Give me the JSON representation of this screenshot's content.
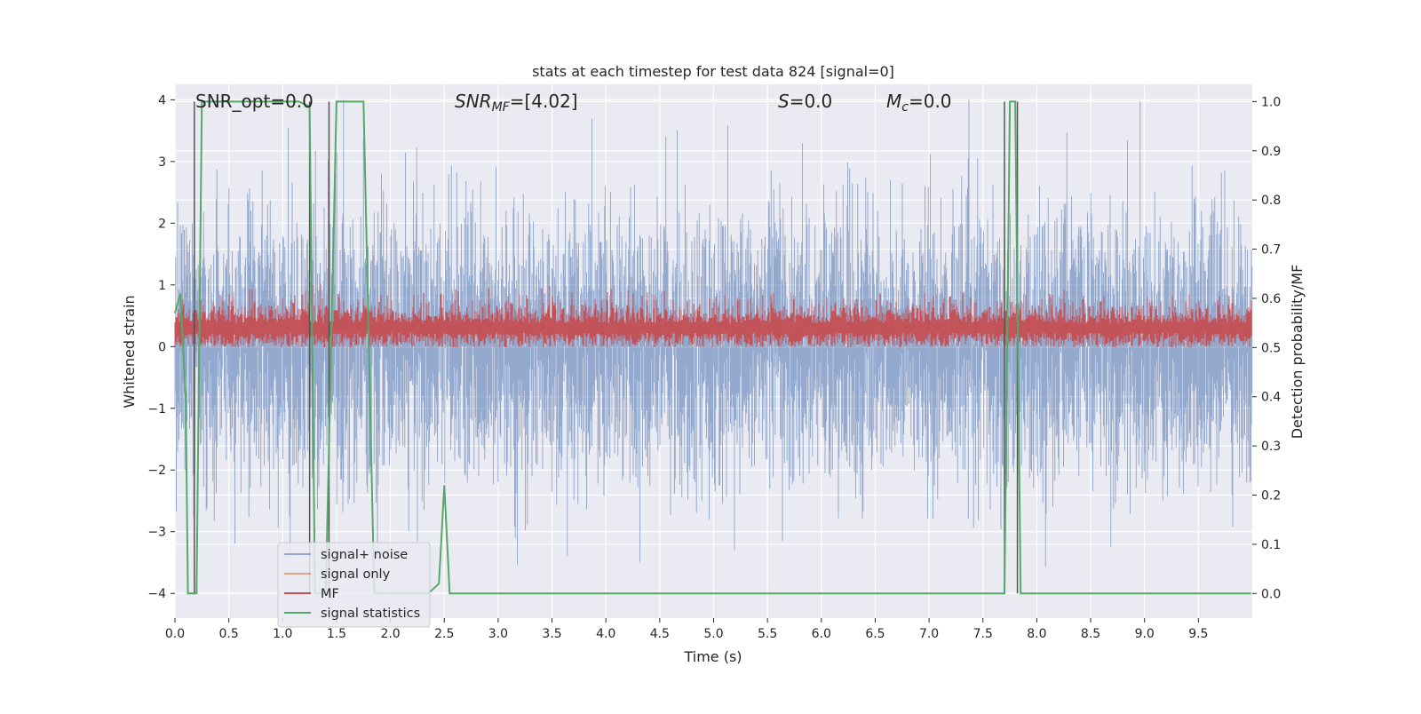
{
  "chart_data": {
    "type": "line",
    "title": "stats at each timestep for test data 824 [signal=0]",
    "xlabel": "Time (s)",
    "ylabel_left": "Whitened strain",
    "ylabel_right": "Detection probability/MF",
    "xlim": [
      0.0,
      10.0
    ],
    "ylim_left": [
      -4.4,
      4.25
    ],
    "ylim_right": [
      -0.05,
      1.035
    ],
    "xticks": [
      0.0,
      0.5,
      1.0,
      1.5,
      2.0,
      2.5,
      3.0,
      3.5,
      4.0,
      4.5,
      5.0,
      5.5,
      6.0,
      6.5,
      7.0,
      7.5,
      8.0,
      8.5,
      9.0,
      9.5
    ],
    "xtick_labels": [
      "0.0",
      "0.5",
      "1.0",
      "1.5",
      "2.0",
      "2.5",
      "3.0",
      "3.5",
      "4.0",
      "4.5",
      "5.0",
      "5.5",
      "6.0",
      "6.5",
      "7.0",
      "7.5",
      "8.0",
      "8.5",
      "9.0",
      "9.5"
    ],
    "yticks_left": [
      -4,
      -3,
      -2,
      -1,
      0,
      1,
      2,
      3,
      4
    ],
    "ytick_labels_left": [
      "−4",
      "−3",
      "−2",
      "−1",
      "0",
      "1",
      "2",
      "3",
      "4"
    ],
    "yticks_right": [
      0.0,
      0.1,
      0.2,
      0.3,
      0.4,
      0.5,
      0.6,
      0.7,
      0.8,
      0.9,
      1.0
    ],
    "ytick_labels_right": [
      "0.0",
      "0.1",
      "0.2",
      "0.3",
      "0.4",
      "0.5",
      "0.6",
      "0.7",
      "0.8",
      "0.9",
      "1.0"
    ],
    "grid": true,
    "legend_position": "lower-left",
    "annotations": {
      "snr_opt": "SNR_opt=0.0",
      "snr_mf_sym": "SNR",
      "snr_mf_sub": "MF",
      "snr_mf_val": "=[4.02]",
      "s_sym": "S",
      "s_val": "=0.0",
      "mc_sym": "M",
      "mc_sub": "c",
      "mc_val": "=0.0"
    },
    "series": [
      {
        "name": "signal+ noise",
        "axis": "left",
        "color": "#4c72b0",
        "opacity": 0.55,
        "approx_range": [
          -4.0,
          4.0
        ],
        "description": "whitened noise, roughly Gaussian with unit variance"
      },
      {
        "name": "signal only",
        "axis": "left",
        "color": "#dd8452",
        "values": "zero"
      },
      {
        "name": "MF",
        "axis": "right",
        "color": "#c44e52",
        "approx_range": [
          0.5,
          0.6
        ],
        "approx_max": 0.63
      },
      {
        "name": "signal statistics",
        "axis": "right",
        "color": "#55a868",
        "x": [
          0.0,
          0.05,
          0.1,
          0.12,
          0.17,
          0.2,
          0.25,
          0.35,
          0.45,
          0.55,
          0.65,
          0.75,
          0.85,
          0.95,
          1.05,
          1.15,
          1.25,
          1.3,
          1.4,
          1.5,
          1.6,
          1.65,
          1.75,
          1.85,
          1.95,
          2.05,
          2.15,
          2.25,
          2.35,
          2.45,
          2.5,
          2.55,
          2.6,
          2.7,
          7.7,
          7.75,
          7.8,
          7.85,
          7.9,
          8.0,
          9.99
        ],
        "y": [
          0.57,
          0.61,
          0.4,
          0.0,
          0.0,
          0.0,
          1.0,
          1.0,
          1.0,
          1.0,
          1.0,
          1.0,
          1.0,
          1.0,
          1.0,
          1.0,
          0.99,
          0.0,
          0.0,
          1.0,
          1.0,
          1.0,
          1.0,
          0.0,
          0.0,
          0.0,
          0.0,
          0.0,
          0.0,
          0.02,
          0.22,
          0.0,
          0.0,
          0.0,
          0.0,
          1.0,
          1.0,
          0.0,
          0.0,
          0.0,
          0.0
        ]
      }
    ],
    "vertical_lines": {
      "color": "#555555",
      "x": [
        0.18,
        1.25,
        1.43,
        7.7,
        7.82
      ],
      "y_top": 1.0,
      "y_bottom": 0.0
    }
  }
}
